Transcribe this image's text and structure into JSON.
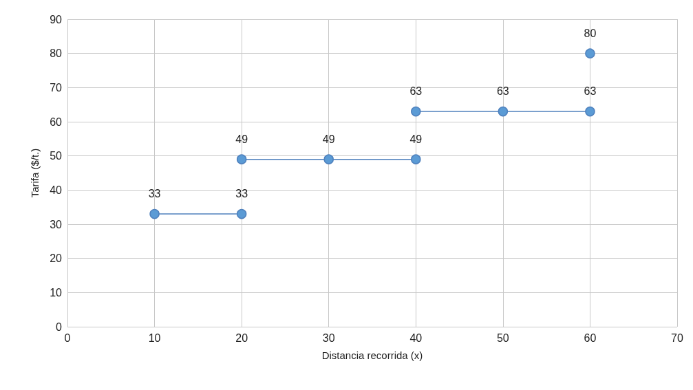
{
  "chart_data": {
    "type": "line",
    "xlabel": "Distancia recorrida (x)",
    "ylabel": "Tarifa ($/t.)",
    "xlim": [
      0,
      70
    ],
    "xticks": [
      0,
      10,
      20,
      30,
      40,
      50,
      60,
      70
    ],
    "ylim": [
      0,
      90
    ],
    "yticks": [
      0,
      10,
      20,
      30,
      40,
      50,
      60,
      70,
      80,
      90
    ],
    "grid": true,
    "marker": "circle",
    "line_style": "solid",
    "data_labels": true,
    "series": [
      {
        "color": "#4f81bd",
        "x": [
          10,
          20
        ],
        "values": [
          33,
          33
        ]
      },
      {
        "color": "#4f81bd",
        "x": [
          20,
          30,
          40
        ],
        "values": [
          49,
          49,
          49
        ]
      },
      {
        "color": "#4f81bd",
        "x": [
          40,
          50,
          60
        ],
        "values": [
          63,
          63,
          63
        ]
      },
      {
        "color": "#4f81bd",
        "x": [
          60
        ],
        "values": [
          80
        ]
      }
    ]
  }
}
